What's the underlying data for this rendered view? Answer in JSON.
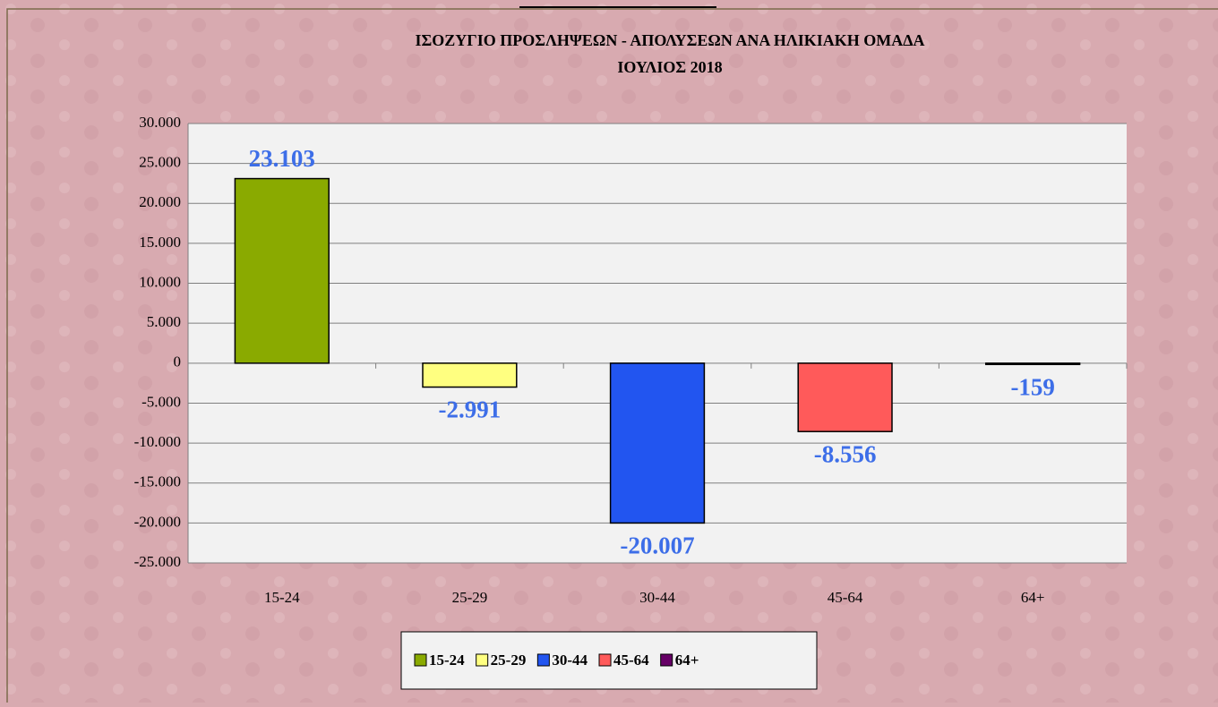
{
  "chart_data": {
    "type": "bar",
    "title": "ΙΣΟΖΥΓΙΟ  ΠΡΟΣΛΗΨΕΩΝ - ΑΠΟΛΥΣΕΩΝ ΑΝΑ ΗΛΙΚΙΑΚΗ ΟΜΑΔΑ",
    "subtitle": "ΙΟΥΛΙΟΣ  2018",
    "categories": [
      "15-24",
      "25-29",
      "30-44",
      "45-64",
      "64+"
    ],
    "values": [
      23103,
      -2991,
      -20007,
      -8556,
      -159
    ],
    "value_labels": [
      "23.103",
      "-2.991",
      "-20.007",
      "-8.556",
      "-159"
    ],
    "colors": [
      "#8aaa00",
      "#ffff80",
      "#2255f0",
      "#ff5a5a",
      "#660066"
    ],
    "ylim": [
      -25000,
      30000
    ],
    "yticks": [
      {
        "value": -25000,
        "label": "-25.000"
      },
      {
        "value": -20000,
        "label": "-20.000"
      },
      {
        "value": -15000,
        "label": "-15.000"
      },
      {
        "value": -10000,
        "label": "-10.000"
      },
      {
        "value": -5000,
        "label": "-5.000"
      },
      0,
      {
        "value": 5000,
        "label": "5.000"
      },
      {
        "value": 10000,
        "label": "10.000"
      },
      {
        "value": 15000,
        "label": "15.000"
      },
      {
        "value": 20000,
        "label": "20.000"
      },
      {
        "value": 25000,
        "label": "25.000"
      },
      {
        "value": 30000,
        "label": "30.000"
      }
    ],
    "grid": true,
    "legend": "bottom"
  }
}
